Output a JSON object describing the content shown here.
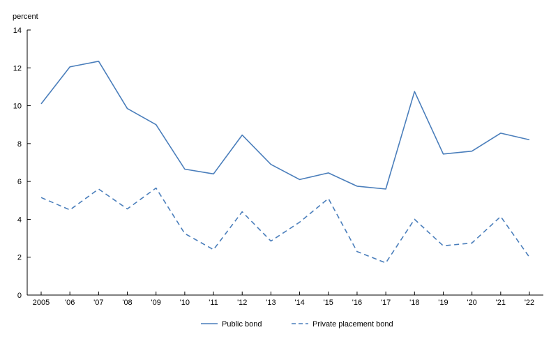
{
  "chart_data": {
    "type": "line",
    "title": "",
    "xlabel": "",
    "ylabel": "percent",
    "ylim": [
      0,
      14
    ],
    "yticks": [
      0,
      2,
      4,
      6,
      8,
      10,
      12,
      14
    ],
    "categories": [
      "2005",
      "'06",
      "'07",
      "'08",
      "'09",
      "'10",
      "'11",
      "'12",
      "'13",
      "'14",
      "'15",
      "'16",
      "'17",
      "'18",
      "'19",
      "'20",
      "'21",
      "'22"
    ],
    "series": [
      {
        "name": "Public bond",
        "style": "solid",
        "color": "#4a7ebb",
        "values": [
          10.1,
          12.05,
          12.35,
          9.85,
          9.0,
          6.65,
          6.4,
          8.45,
          6.9,
          6.1,
          6.45,
          5.75,
          5.6,
          10.75,
          7.45,
          7.6,
          8.55,
          8.2
        ]
      },
      {
        "name": "Private placement bond",
        "style": "dashed",
        "color": "#4a7ebb",
        "values": [
          5.15,
          4.5,
          5.6,
          4.55,
          5.65,
          3.25,
          2.4,
          4.4,
          2.85,
          3.85,
          5.1,
          2.3,
          1.7,
          4.0,
          2.6,
          2.75,
          4.15,
          2.0
        ]
      }
    ],
    "grid": false,
    "legend_position": "bottom-center"
  }
}
